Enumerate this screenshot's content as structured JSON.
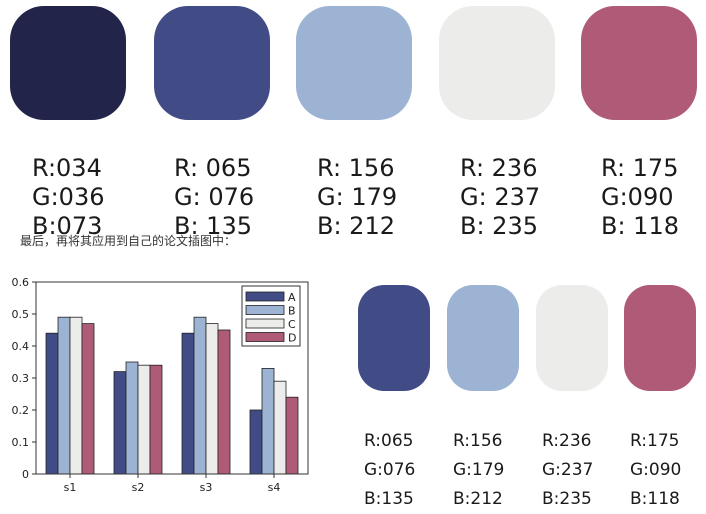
{
  "palette": [
    {
      "hex": "#222449",
      "r": "R:034",
      "g": "G:036",
      "b": "B:073"
    },
    {
      "hex": "#414C87",
      "r": "R: 065",
      "g": "G: 076",
      "b": "B: 135"
    },
    {
      "hex": "#9CB3D4",
      "r": "R: 156",
      "g": "G: 179",
      "b": "B: 212"
    },
    {
      "hex": "#ECEDEB",
      "r": "R: 236",
      "g": "G: 237",
      "b": "B: 235"
    },
    {
      "hex": "#AF5A76",
      "r": "R: 175",
      "g": "G:090",
      "b": "B: 118"
    }
  ],
  "caption": "最后，再将其应用到自己的论文插图中：",
  "chart_data": {
    "type": "bar",
    "categories": [
      "s1",
      "s2",
      "s3",
      "s4"
    ],
    "series": [
      {
        "name": "A",
        "color": "#414C87",
        "values": [
          0.44,
          0.32,
          0.44,
          0.2
        ]
      },
      {
        "name": "B",
        "color": "#9CB3D4",
        "values": [
          0.49,
          0.35,
          0.49,
          0.33
        ]
      },
      {
        "name": "C",
        "color": "#ECEDEB",
        "values": [
          0.49,
          0.34,
          0.47,
          0.29
        ]
      },
      {
        "name": "D",
        "color": "#AF5A76",
        "values": [
          0.47,
          0.34,
          0.45,
          0.24
        ]
      }
    ],
    "ylim": [
      0,
      0.6
    ],
    "yticks": [
      "0",
      "0.1",
      "0.2",
      "0.3",
      "0.4",
      "0.5",
      "0.6"
    ],
    "legend": "top-right"
  },
  "small_palette": [
    {
      "hex": "#414C87",
      "r": "R:065",
      "g": "G:076",
      "b": "B:135"
    },
    {
      "hex": "#9CB3D4",
      "r": "R:156",
      "g": "G:179",
      "b": "B:212"
    },
    {
      "hex": "#ECEDEB",
      "r": "R:236",
      "g": "G:237",
      "b": "B:235"
    },
    {
      "hex": "#AF5A76",
      "r": "R:175",
      "g": "G:090",
      "b": "B:118"
    }
  ]
}
